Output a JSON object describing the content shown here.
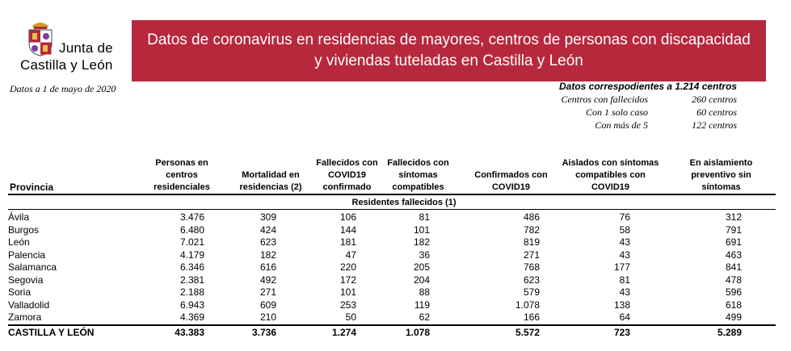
{
  "logo": {
    "line1": "Junta de",
    "line2": "Castilla y León"
  },
  "banner": {
    "title": "Datos de coronavirus en residencias de mayores, centros de personas con discapacidad y viviendas tuteladas en Castilla y León"
  },
  "date_note": "Datos a 1 de mayo de 2020",
  "summary": {
    "heading": "Datos correspodientes a 1.214 centros",
    "rows": [
      {
        "label": "Centros con fallecidos",
        "value": "260 centros"
      },
      {
        "label": "Con 1 solo caso",
        "value": "60 centros"
      },
      {
        "label": "Con más de 5",
        "value": "122 centros"
      }
    ]
  },
  "table": {
    "headers": [
      "Provincia",
      "Personas en centros residenciales",
      "Mortalidad en residencias (2)",
      "Fallecidos con COVID19 confirmado",
      "Fallecidos con síntomas compatibles",
      "Confirmados con COVID19",
      "Aislados con síntomas compatibles con COVID19",
      "En aislamiento preventivo sin síntomas"
    ],
    "subheader": "Residentes fallecidos (1)",
    "rows": [
      [
        "Ávila",
        "3.476",
        "309",
        "106",
        "81",
        "486",
        "76",
        "312"
      ],
      [
        "Burgos",
        "6.480",
        "424",
        "144",
        "101",
        "782",
        "58",
        "791"
      ],
      [
        "León",
        "7.021",
        "623",
        "181",
        "182",
        "819",
        "43",
        "691"
      ],
      [
        "Palencia",
        "4.179",
        "182",
        "47",
        "36",
        "271",
        "43",
        "463"
      ],
      [
        "Salamanca",
        "6.346",
        "616",
        "220",
        "205",
        "768",
        "177",
        "841"
      ],
      [
        "Segovia",
        "2.381",
        "492",
        "172",
        "204",
        "623",
        "81",
        "478"
      ],
      [
        "Soria",
        "2.188",
        "271",
        "101",
        "88",
        "579",
        "43",
        "596"
      ],
      [
        "Valladolid",
        "6.943",
        "609",
        "253",
        "119",
        "1.078",
        "138",
        "618"
      ],
      [
        "Zamora",
        "4.369",
        "210",
        "50",
        "62",
        "166",
        "64",
        "499"
      ]
    ],
    "total": [
      "CASTILLA Y LEÓN",
      "43.383",
      "3.736",
      "1.274",
      "1.078",
      "5.572",
      "723",
      "5.289"
    ]
  },
  "colors": {
    "banner": "#b7283c",
    "banner_text": "#ffffff"
  }
}
